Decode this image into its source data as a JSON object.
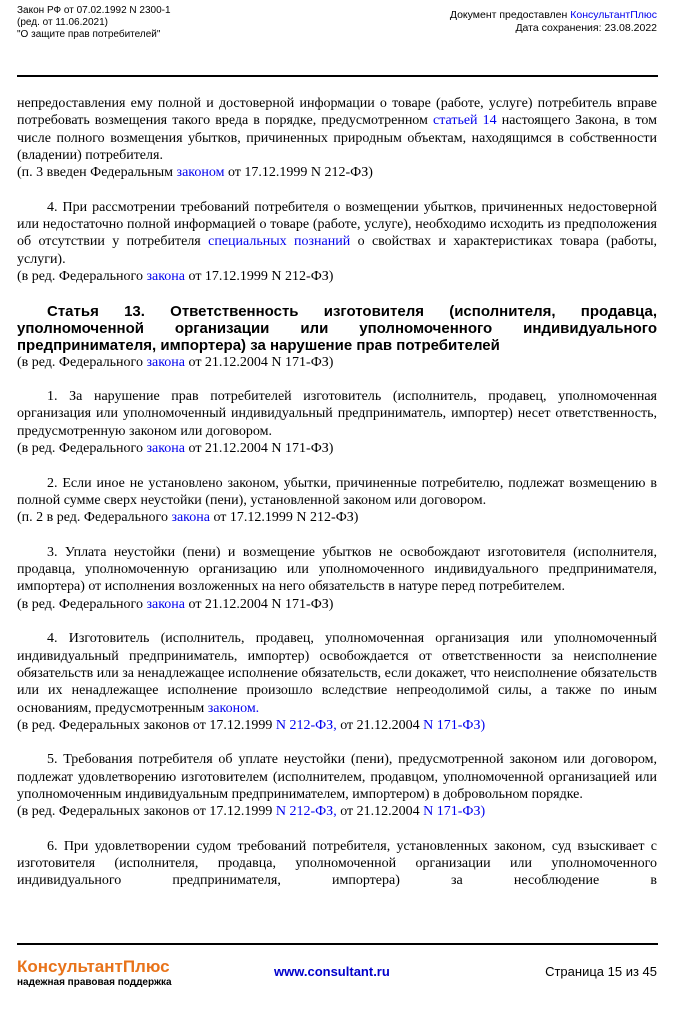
{
  "header": {
    "left": [
      "Закон РФ от 07.02.1992 N 2300-1",
      "(ред. от 11.06.2021)",
      "\"О защите прав потребителей\""
    ],
    "provided": "Документ предоставлен ",
    "provider": "КонсультантПлюс",
    "saved": "Дата сохранения: 23.08.2022"
  },
  "body": [
    {
      "continuation": [
        "непредоставления ему полной и достоверной информации о товаре (работе, услуге) потребитель вправе потребовать возмещения такого вреда в порядке, предусмотренном ",
        {
          "link": "статьей 14"
        },
        " настоящего Закона, в том числе полного возмещения убытков, причиненных природным объектам, находящимся в собственности (владении) потребителя."
      ]
    },
    {
      "note": [
        "(п. 3 введен Федеральным ",
        {
          "link": "законом"
        },
        " от 17.12.1999 N 212-ФЗ)"
      ]
    },
    {
      "paragraph": [
        "4. При рассмотрении требований потребителя о возмещении убытков, причиненных недостоверной или недостаточно полной информацией о товаре (работе, услуге), необходимо исходить из предположения об отсутствии у потребителя ",
        {
          "link": "специальных познаний"
        },
        " о свойствах и характеристиках товара (работы, услуги)."
      ]
    },
    {
      "note": [
        "(в ред. Федерального ",
        {
          "link": "закона"
        },
        " от 17.12.1999 N 212-ФЗ)"
      ]
    },
    {
      "heading": [
        "Статья 13. Ответственность изготовителя (исполнителя, продавца, уполномоченной организации или уполномоченного индивидуального предпринимателя, импортера) за нарушение прав потребителей"
      ]
    },
    {
      "note": [
        "(в ред. Федерального ",
        {
          "link": "закона"
        },
        " от 21.12.2004 N 171-ФЗ)"
      ]
    },
    {
      "paragraph": [
        "1. За нарушение прав потребителей изготовитель (исполнитель, продавец, уполномоченная организация или уполномоченный индивидуальный предприниматель, импортер) несет ответственность, предусмотренную законом или договором."
      ]
    },
    {
      "note": [
        "(в ред. Федерального ",
        {
          "link": "закона"
        },
        " от 21.12.2004 N 171-ФЗ)"
      ]
    },
    {
      "paragraph": [
        "2. Если иное не установлено законом, убытки, причиненные потребителю, подлежат возмещению в полной сумме сверх неустойки (пени), установленной законом или договором."
      ]
    },
    {
      "note": [
        "(п. 2 в ред. Федерального ",
        {
          "link": "закона"
        },
        " от 17.12.1999 N 212-ФЗ)"
      ]
    },
    {
      "paragraph": [
        "3. Уплата неустойки (пени) и возмещение убытков не освобождают изготовителя (исполнителя, продавца, уполномоченную организацию или уполномоченного индивидуального предпринимателя, импортера) от исполнения возложенных на него обязательств в натуре перед потребителем."
      ]
    },
    {
      "note": [
        "(в ред. Федерального ",
        {
          "link": "закона"
        },
        " от 21.12.2004 N 171-ФЗ)"
      ]
    },
    {
      "paragraph": [
        "4. Изготовитель (исполнитель, продавец, уполномоченная организация или уполномоченный индивидуальный предприниматель, импортер) освобождается от ответственности за неисполнение обязательств или за ненадлежащее исполнение обязательств, если докажет, что неисполнение обязательств или их ненадлежащее исполнение произошло вследствие непреодолимой силы, а также по иным основаниям, предусмотренным ",
        {
          "link": "законом."
        }
      ]
    },
    {
      "note": [
        "(в ред. Федеральных законов от 17.12.1999 ",
        {
          "link": "N 212-ФЗ,"
        },
        " от 21.12.2004 ",
        {
          "link": "N 171-ФЗ)"
        }
      ]
    },
    {
      "paragraph": [
        "5. Требования потребителя об уплате неустойки (пени), предусмотренной законом или договором, подлежат удовлетворению изготовителем (исполнителем, продавцом, уполномоченной организацией или уполномоченным индивидуальным предпринимателем, импортером) в добровольном порядке."
      ]
    },
    {
      "note": [
        "(в ред. Федеральных законов от 17.12.1999 ",
        {
          "link": "N 212-ФЗ,"
        },
        " от 21.12.2004 ",
        {
          "link": "N 171-ФЗ)"
        }
      ]
    },
    {
      "paragraph": [
        "6. При удовлетворении судом требований потребителя, установленных законом, суд взыскивает с изготовителя (исполнителя, продавца, уполномоченной организации или уполномоченного индивидуального предпринимателя, импортера) за несоблюдение в"
      ]
    }
  ],
  "footer": {
    "brand": "КонсультантПлюс",
    "tagline": "надежная правовая поддержка",
    "site": "www.consultant.ru",
    "page": "Страница 15 из 45"
  }
}
